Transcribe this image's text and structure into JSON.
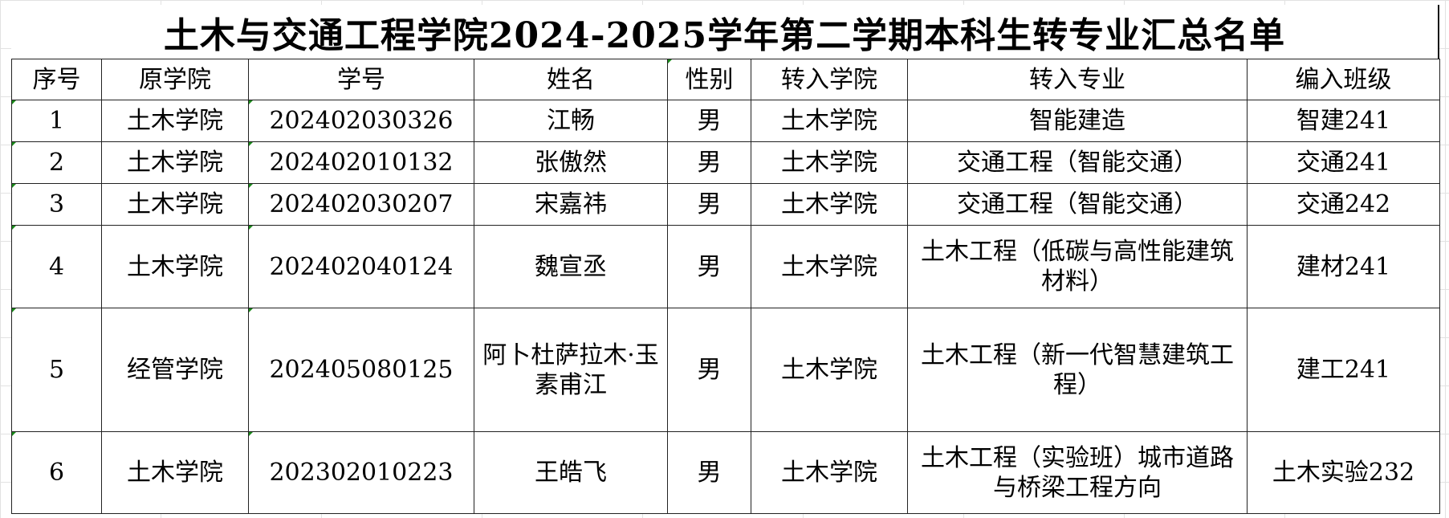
{
  "title": "土木与交通工程学院2024-2025学年第二学期本科生转专业汇总名单",
  "headers": [
    "序号",
    "原学院",
    "学号",
    "姓名",
    "性别",
    "转入学院",
    "转入专业",
    "编入班级"
  ],
  "rows": [
    [
      "1",
      "土木学院",
      "202402030326",
      "江畅",
      "男",
      "土木学院",
      "智能建造",
      "智建241"
    ],
    [
      "2",
      "土木学院",
      "202402010132",
      "张傲然",
      "男",
      "土木学院",
      "交通工程（智能交通）",
      "交通241"
    ],
    [
      "3",
      "土木学院",
      "202402030207",
      "宋嘉祎",
      "男",
      "土木学院",
      "交通工程（智能交通）",
      "交通242"
    ],
    [
      "4",
      "土木学院",
      "202402040124",
      "魏宣丞",
      "男",
      "土木学院",
      "土木工程（低碳与高性能建筑材料）",
      "建材241"
    ],
    [
      "5",
      "经管学院",
      "202405080125",
      "阿卜杜萨拉木·玉素甫江",
      "男",
      "土木学院",
      "土木工程（新一代智慧建筑工程）",
      "建工241"
    ],
    [
      "6",
      "土木学院",
      "202302010223",
      "王皓飞",
      "男",
      "土木学院",
      "土木工程（实验班）城市道路与桥梁工程方向",
      "土木实验232"
    ]
  ]
}
